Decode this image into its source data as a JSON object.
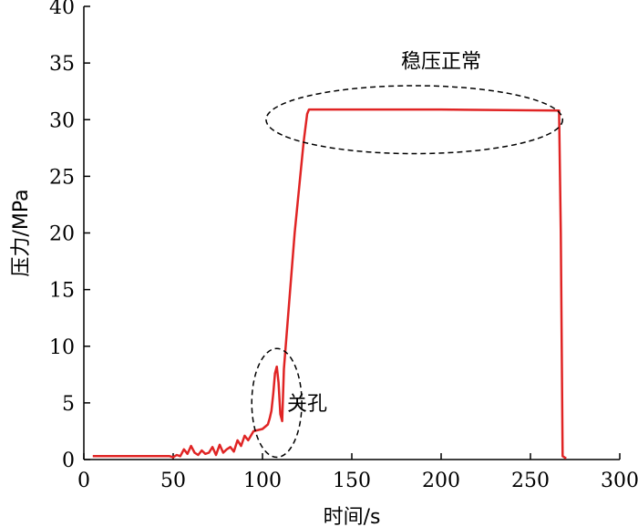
{
  "chart_data": {
    "type": "line",
    "xlabel": "时间/s",
    "ylabel": "压力/MPa",
    "xlim": [
      0,
      300
    ],
    "ylim": [
      0,
      40
    ],
    "xticks": [
      0,
      50,
      100,
      150,
      200,
      250,
      300
    ],
    "yticks": [
      0,
      5,
      10,
      15,
      20,
      25,
      30,
      35,
      40
    ],
    "grid": false,
    "colors": {
      "line": "#e02424",
      "axis": "#000000",
      "ellipse": "#000000"
    },
    "series": [
      {
        "name": "",
        "x": [
          5,
          48,
          50,
          52,
          54,
          56,
          58,
          60,
          62,
          64,
          66,
          68,
          70,
          72,
          74,
          76,
          78,
          80,
          82,
          84,
          86,
          88,
          90,
          92,
          95,
          100,
          103,
          104,
          105,
          106,
          107,
          108,
          109,
          110,
          111,
          112,
          118,
          123,
          125,
          126,
          200,
          266,
          267,
          268,
          270
        ],
        "y": [
          0.3,
          0.3,
          0.2,
          0.4,
          0.3,
          0.9,
          0.5,
          1.2,
          0.6,
          0.4,
          0.8,
          0.5,
          0.6,
          1.1,
          0.4,
          1.3,
          0.6,
          0.9,
          1.1,
          0.7,
          1.7,
          1.2,
          2.1,
          1.7,
          2.5,
          2.7,
          3.1,
          3.6,
          4.3,
          5.8,
          7.6,
          8.2,
          6.8,
          4.0,
          3.4,
          8.0,
          20.0,
          28.0,
          30.5,
          30.9,
          30.9,
          30.8,
          20.0,
          0.3,
          0.1
        ]
      }
    ],
    "annotations": [
      {
        "text": "稳压正常",
        "x": 200,
        "y": 35.2,
        "ellipse": {
          "cx": 185,
          "cy": 30.0,
          "rx": 83,
          "ry": 3.0
        }
      },
      {
        "text": "关孔",
        "x": 125,
        "y": 5.0,
        "ellipse": {
          "cx": 108,
          "cy": 5.0,
          "rx": 14,
          "ry": 4.8
        }
      }
    ]
  }
}
